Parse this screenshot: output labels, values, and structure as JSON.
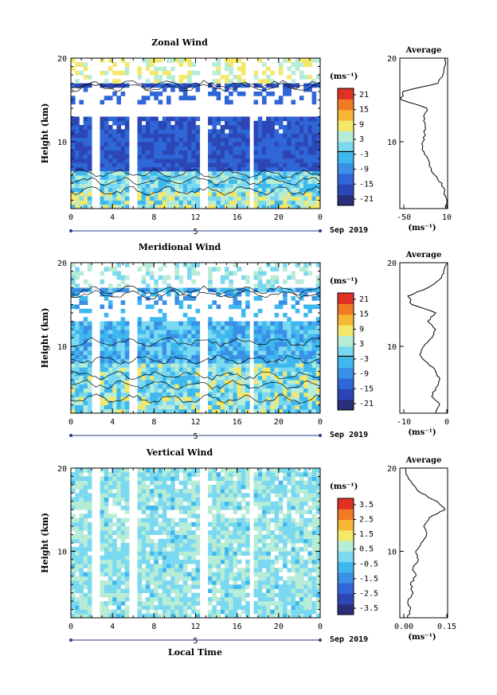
{
  "figure": {
    "xlabel": "Local Time",
    "date_label": "Sep 2019",
    "day_marker": "5",
    "ylabel": "Height (km)",
    "unit": "(ms⁻¹)",
    "average_title": "Average",
    "average_unit": "(ms⁻¹)"
  },
  "chart_data": [
    {
      "type": "heatmap",
      "title": "Zonal Wind",
      "xlabel": "",
      "ylabel": "Height (km)",
      "x_ticks": [
        "0",
        "4",
        "8",
        "12",
        "16",
        "20",
        "0"
      ],
      "xlim": [
        0,
        24
      ],
      "ylim": [
        2,
        20
      ],
      "y_ticks": [
        "10",
        "20"
      ],
      "colorbar_ticks": [
        "21",
        "15",
        "9",
        "3",
        "-3",
        "-9",
        "-15",
        "-21"
      ],
      "colorbar_range": [
        -24,
        24
      ],
      "profile": {
        "x_ticks": [
          "-50",
          "10"
        ],
        "xlim": [
          -50,
          10
        ],
        "heights": [
          2,
          3,
          4,
          5,
          6,
          7,
          8,
          9,
          10,
          11,
          12,
          13,
          14,
          15,
          16,
          17,
          18,
          19,
          20
        ],
        "values": [
          8,
          9,
          6,
          3,
          -6,
          -12,
          -15,
          -22,
          -21,
          -19,
          -18,
          -20,
          -16,
          -48,
          -46,
          -2,
          4,
          6,
          8
        ]
      },
      "rows": [
        [
          3,
          4,
          5,
          6
        ],
        [
          2,
          3,
          4,
          5
        ],
        [
          0,
          1,
          2,
          3
        ],
        [
          -3,
          -4,
          -2,
          -5
        ],
        [
          -9,
          -11,
          -12,
          -10
        ],
        [
          -15,
          -17,
          -18,
          -16
        ],
        [
          -19,
          -21,
          -20,
          -18
        ]
      ]
    },
    {
      "type": "heatmap",
      "title": "Meridional Wind",
      "xlabel": "",
      "ylabel": "Height (km)",
      "x_ticks": [
        "0",
        "4",
        "8",
        "12",
        "16",
        "20",
        "0"
      ],
      "xlim": [
        0,
        24
      ],
      "ylim": [
        2,
        20
      ],
      "y_ticks": [
        "10",
        "20"
      ],
      "colorbar_ticks": [
        "21",
        "15",
        "9",
        "3",
        "-3",
        "-9",
        "-15",
        "-21"
      ],
      "colorbar_range": [
        -24,
        24
      ],
      "profile": {
        "x_ticks": [
          "-10",
          "0"
        ],
        "xlim": [
          -10,
          2
        ],
        "heights": [
          2,
          3,
          4,
          5,
          6,
          7,
          8,
          9,
          10,
          11,
          12,
          13,
          14,
          15,
          16,
          17,
          18,
          19,
          20
        ],
        "values": [
          -1,
          0,
          -2,
          -1,
          0,
          -1,
          -3,
          -5,
          -4,
          -2,
          -1,
          -3,
          -1,
          -7,
          -8,
          -3,
          0,
          1,
          2
        ],
        "note": ""
      },
      "rows": [
        [
          -2,
          -4,
          -3,
          -5
        ],
        [
          -6,
          -7,
          -5,
          -4
        ],
        [
          1,
          2,
          0,
          -2
        ],
        [
          -3,
          -5,
          -4,
          -6
        ],
        [
          -8,
          -9,
          -7,
          -6
        ],
        [
          -11,
          -12,
          -10,
          -9
        ]
      ]
    },
    {
      "type": "heatmap",
      "title": "Vertical Wind",
      "xlabel": "Local Time",
      "ylabel": "Height (km)",
      "x_ticks": [
        "0",
        "4",
        "8",
        "12",
        "16",
        "20",
        "0"
      ],
      "xlim": [
        0,
        24
      ],
      "ylim": [
        2,
        20
      ],
      "y_ticks": [
        "10",
        "20"
      ],
      "colorbar_ticks": [
        "3.5",
        "2.5",
        "1.5",
        "0.5",
        "-0.5",
        "-1.5",
        "-2.5",
        "-3.5"
      ],
      "colorbar_range": [
        -4,
        4
      ],
      "profile": {
        "x_ticks": [
          "0.00",
          "0.15"
        ],
        "xlim": [
          -0.02,
          0.16
        ],
        "heights": [
          2,
          3,
          4,
          5,
          6,
          7,
          8,
          9,
          10,
          11,
          12,
          13,
          14,
          15,
          16,
          17,
          18,
          19,
          20
        ],
        "values": [
          0.01,
          0.02,
          0.01,
          0.03,
          0.02,
          0.04,
          0.03,
          0.05,
          0.04,
          0.06,
          0.08,
          0.07,
          0.09,
          0.15,
          0.12,
          0.06,
          0.03,
          0.01,
          0.0
        ]
      },
      "rows": [
        [
          0.2,
          0.4,
          0.3,
          0.1
        ],
        [
          0.0,
          0.5,
          0.2,
          0.3
        ],
        [
          0.3,
          0.1,
          0.4,
          0.2
        ]
      ]
    }
  ],
  "colors": {
    "palette": [
      "#2b2f7a",
      "#2c47b5",
      "#2f66d8",
      "#3a8fe6",
      "#3fb8ef",
      "#7ad8f0",
      "#b7ecd6",
      "#f3e86a",
      "#f7b733",
      "#f27a24",
      "#e03224"
    ]
  }
}
